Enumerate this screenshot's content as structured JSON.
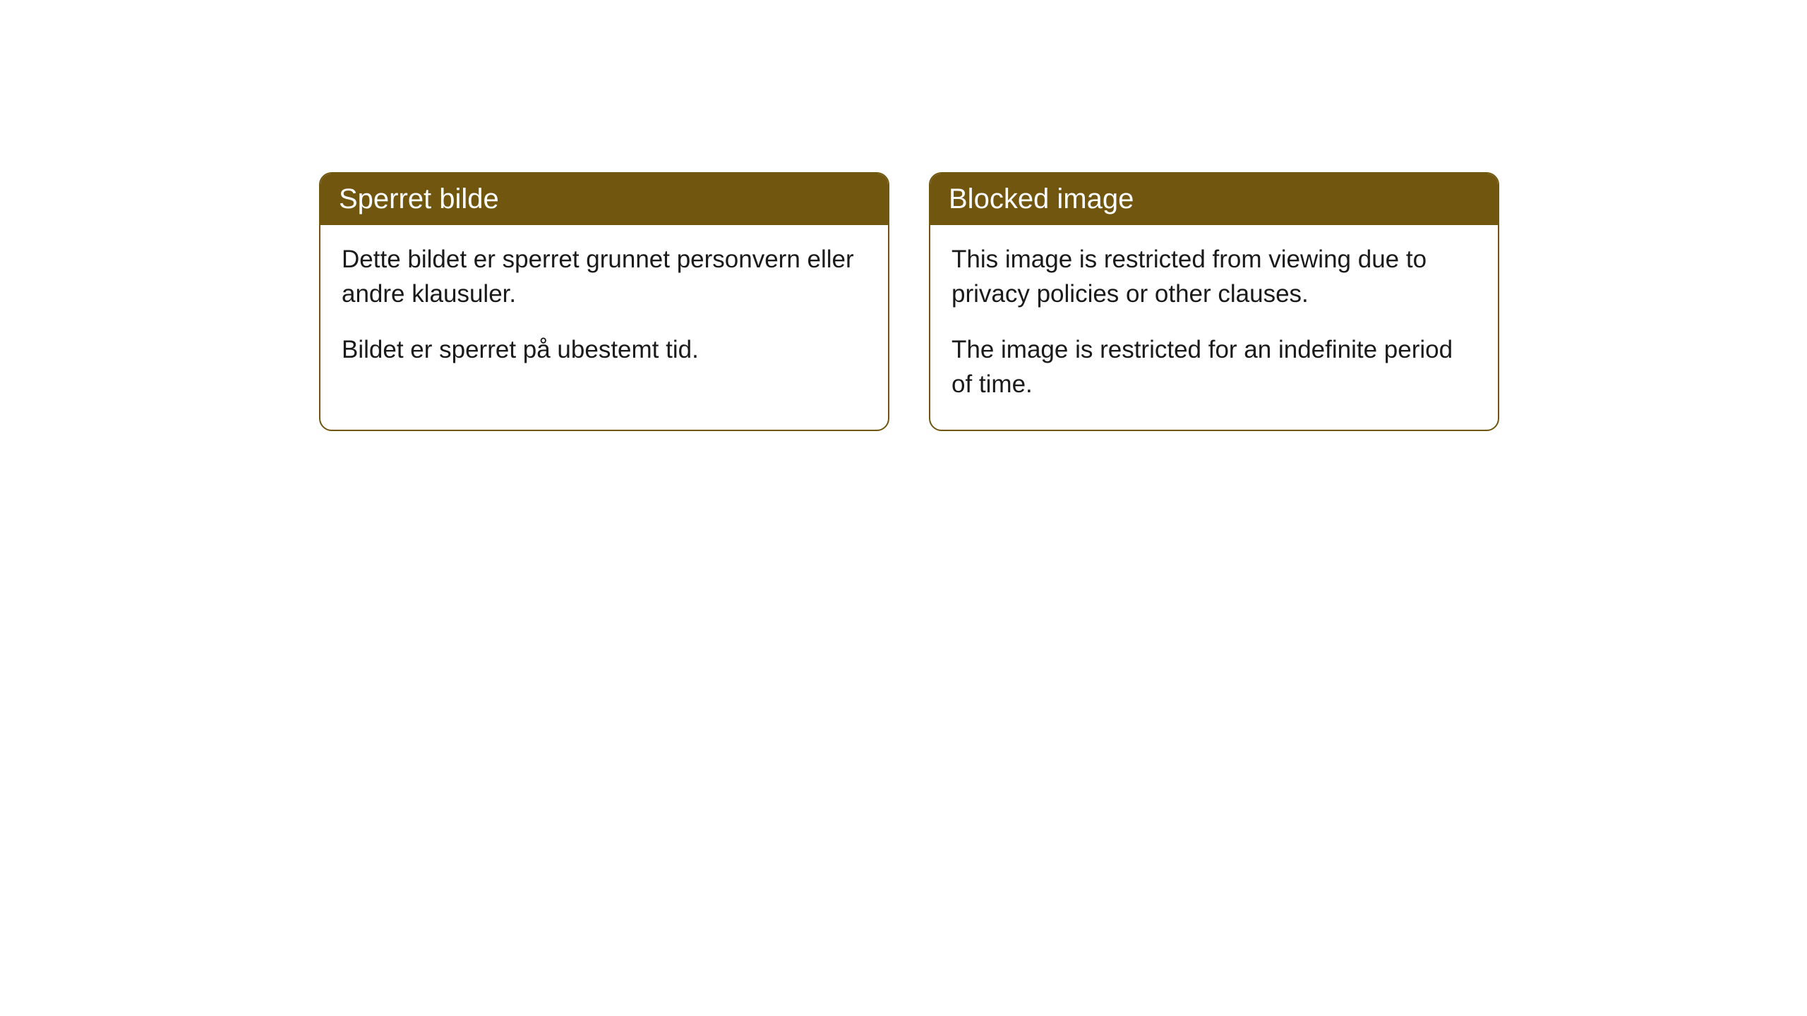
{
  "cards": [
    {
      "title": "Sperret bilde",
      "paragraph1": "Dette bildet er sperret grunnet personvern eller andre klausuler.",
      "paragraph2": "Bildet er sperret på ubestemt tid."
    },
    {
      "title": "Blocked image",
      "paragraph1": "This image is restricted from viewing due to privacy policies or other clauses.",
      "paragraph2": "The image is restricted for an indefinite period of time."
    }
  ],
  "styling": {
    "header_bg_color": "#70560f",
    "header_text_color": "#ffffff",
    "border_color": "#70560f",
    "body_bg_color": "#ffffff",
    "body_text_color": "#1a1a1a",
    "border_radius": 18,
    "header_font_size": 40,
    "body_font_size": 35
  }
}
